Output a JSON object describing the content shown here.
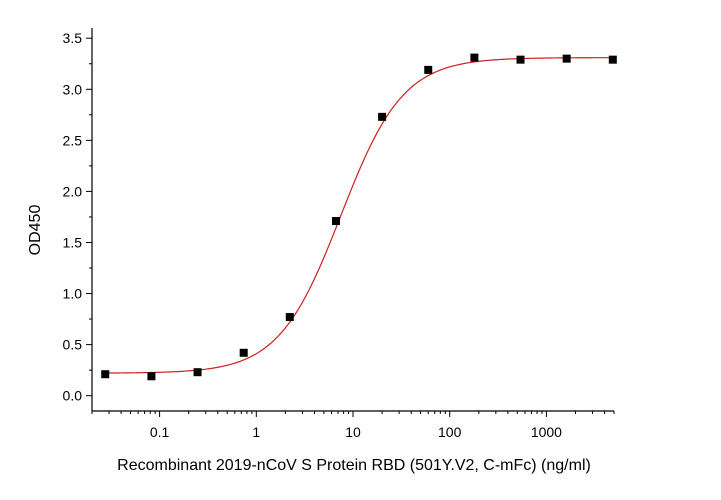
{
  "chart_data": {
    "type": "scatter",
    "title": "",
    "xlabel": "Recombinant 2019-nCoV S Protein RBD (501Y.V2, C-mFc) (ng/ml)",
    "ylabel": "OD450",
    "xscale": "log",
    "xlim": [
      0.02,
      5000
    ],
    "ylim": [
      -0.15,
      3.6
    ],
    "xticks": [
      0.1,
      1,
      10,
      100,
      1000
    ],
    "xtick_labels": [
      "0.1",
      "1",
      "10",
      "100",
      "1000"
    ],
    "yticks": [
      0.0,
      0.5,
      1.0,
      1.5,
      2.0,
      2.5,
      3.0,
      3.5
    ],
    "ytick_labels": [
      "0.0",
      "0.5",
      "1.0",
      "1.5",
      "2.0",
      "2.5",
      "3.0",
      "3.5"
    ],
    "grid": false,
    "legend": "none",
    "series": [
      {
        "marker": "square",
        "color": "#000000",
        "x": [
          0.0274,
          0.0823,
          0.247,
          0.741,
          2.22,
          6.67,
          20,
          60,
          180,
          540,
          1620,
          4860
        ],
        "y": [
          0.21,
          0.19,
          0.23,
          0.42,
          0.77,
          1.71,
          2.73,
          3.19,
          3.31,
          3.29,
          3.3,
          3.29
        ]
      }
    ],
    "fit": {
      "model": "4-parameter logistic",
      "color": "#cc2020",
      "bottom": 0.22,
      "top": 3.31,
      "ec50": 7.5,
      "hill": 1.35
    }
  }
}
